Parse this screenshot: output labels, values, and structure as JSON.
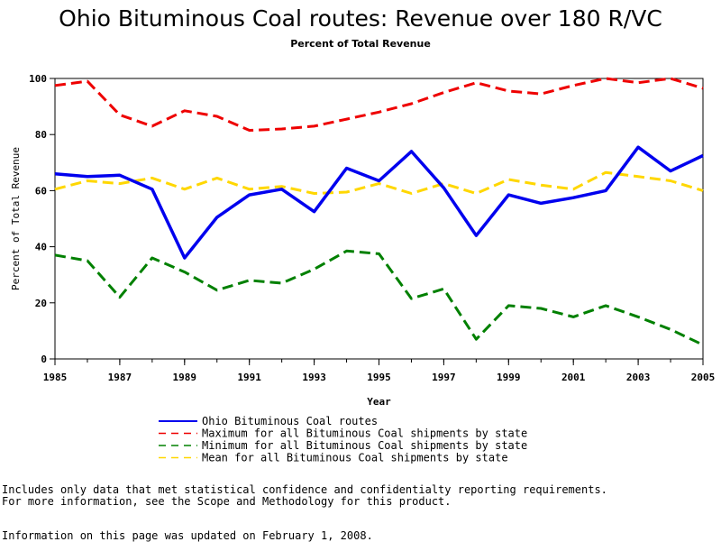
{
  "title": "Ohio Bituminous Coal routes: Revenue over 180 R/VC",
  "subtitle": "Percent of Total Revenue",
  "chart_data": {
    "type": "line",
    "xlabel": "Year",
    "ylabel": "Percent of Total Revenue",
    "xlim": [
      1985,
      2005
    ],
    "ylim": [
      0,
      100
    ],
    "x_ticks": [
      "1985",
      "1987",
      "1989",
      "1991",
      "1993",
      "1995",
      "1997",
      "1999",
      "2001",
      "2003",
      "2005"
    ],
    "y_ticks": [
      "0",
      "20",
      "40",
      "60",
      "80",
      "100"
    ],
    "x": [
      1985,
      1986,
      1987,
      1988,
      1989,
      1990,
      1991,
      1992,
      1993,
      1994,
      1995,
      1996,
      1997,
      1998,
      1999,
      2000,
      2001,
      2002,
      2003,
      2004,
      2005
    ],
    "grid": false,
    "legend_position": "bottom",
    "series": [
      {
        "name": "Ohio Bituminous Coal routes",
        "color": "#0000ee",
        "dash": "solid",
        "values": [
          66,
          65,
          65.5,
          60.5,
          36,
          50.5,
          58.5,
          60.5,
          52.5,
          68,
          63.5,
          74,
          61,
          44,
          58.5,
          55.5,
          57.5,
          60,
          75.5,
          67,
          72.5
        ]
      },
      {
        "name": "Maximum for all Bituminous Coal shipments by state",
        "color": "#ee0000",
        "dash": "dashed",
        "values": [
          97.5,
          99,
          87,
          83,
          88.5,
          86.5,
          81.5,
          82,
          83,
          85.5,
          88,
          91,
          95,
          98.5,
          95.5,
          94.5,
          97.5,
          100,
          98.5,
          100,
          96.5
        ]
      },
      {
        "name": "Minimum for all Bituminous Coal shipments by state",
        "color": "#008000",
        "dash": "dashed",
        "values": [
          37,
          35,
          22,
          36,
          31,
          24.5,
          28,
          27,
          32,
          38.5,
          37.5,
          21.5,
          25,
          7,
          19,
          18,
          15,
          19,
          15,
          10.5,
          5
        ]
      },
      {
        "name": "Mean for all Bituminous Coal shipments by state",
        "color": "#ffd700",
        "dash": "dashed",
        "values": [
          60.5,
          63.5,
          62.5,
          64.5,
          60.5,
          64.5,
          60.5,
          61.5,
          59,
          59.5,
          62.5,
          59,
          62.5,
          59,
          64,
          62,
          60.5,
          66.5,
          65,
          63.5,
          60
        ]
      }
    ]
  },
  "notes": {
    "line1": "Includes only data that met statistical confidence and confidentialty reporting requirements.",
    "line2": "For more information, see the Scope and Methodology for this product.",
    "line3": "Information on this page was updated on February 1, 2008."
  }
}
